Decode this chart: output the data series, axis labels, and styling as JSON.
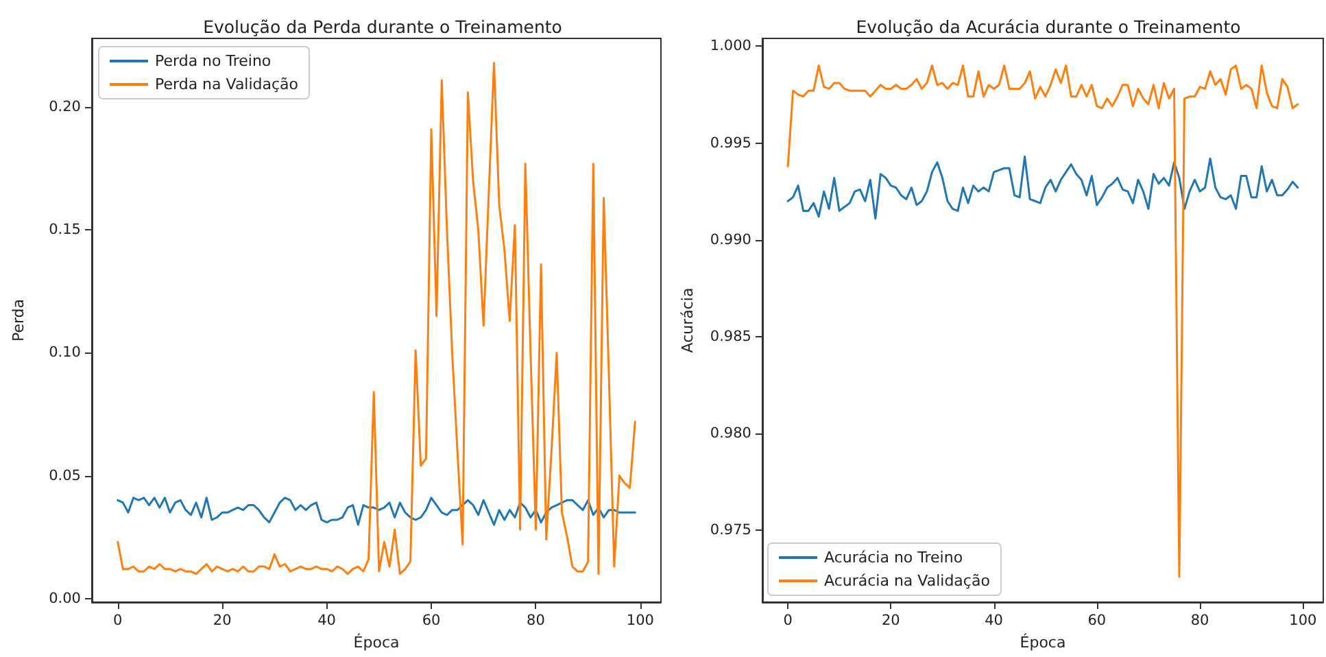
{
  "chart_data": [
    {
      "type": "line",
      "title": "Evolução da Perda durante o Treinamento",
      "xlabel": "Época",
      "ylabel": "Perda",
      "legend": "top left",
      "x": [
        0,
        1,
        2,
        3,
        4,
        5,
        6,
        7,
        8,
        9,
        10,
        11,
        12,
        13,
        14,
        15,
        16,
        17,
        18,
        19,
        20,
        21,
        22,
        23,
        24,
        25,
        26,
        27,
        28,
        29,
        30,
        31,
        32,
        33,
        34,
        35,
        36,
        37,
        38,
        39,
        40,
        41,
        42,
        43,
        44,
        45,
        46,
        47,
        48,
        49,
        50,
        51,
        52,
        53,
        54,
        55,
        56,
        57,
        58,
        59,
        60,
        61,
        62,
        63,
        64,
        65,
        66,
        67,
        68,
        69,
        70,
        71,
        72,
        73,
        74,
        75,
        76,
        77,
        78,
        79,
        80,
        81,
        82,
        83,
        84,
        85,
        86,
        87,
        88,
        89,
        90,
        91,
        92,
        93,
        94,
        95,
        96,
        97,
        98,
        99
      ],
      "xlim": [
        -4.95,
        103.95
      ],
      "xticks": [
        0,
        20,
        40,
        60,
        80,
        100
      ],
      "ylim": [
        -0.0015,
        0.228
      ],
      "yticks": [
        {
          "value": 0,
          "label": "0.00"
        },
        {
          "value": 0.05,
          "label": "0.05"
        },
        {
          "value": 0.1,
          "label": "0.10"
        },
        {
          "value": 0.15,
          "label": "0.15"
        },
        {
          "value": 0.2,
          "label": "0.20"
        }
      ],
      "series": [
        {
          "name": "Perda no Treino",
          "color": "#1f77b4",
          "values": [
            0.04,
            0.039,
            0.035,
            0.041,
            0.04,
            0.041,
            0.038,
            0.041,
            0.037,
            0.041,
            0.035,
            0.039,
            0.04,
            0.036,
            0.034,
            0.039,
            0.033,
            0.041,
            0.032,
            0.033,
            0.035,
            0.035,
            0.036,
            0.037,
            0.036,
            0.038,
            0.038,
            0.036,
            0.033,
            0.031,
            0.035,
            0.039,
            0.041,
            0.04,
            0.036,
            0.038,
            0.036,
            0.038,
            0.039,
            0.032,
            0.031,
            0.032,
            0.032,
            0.033,
            0.037,
            0.038,
            0.03,
            0.038,
            0.037,
            0.037,
            0.036,
            0.037,
            0.039,
            0.033,
            0.039,
            0.035,
            0.033,
            0.032,
            0.033,
            0.036,
            0.041,
            0.038,
            0.035,
            0.034,
            0.036,
            0.036,
            0.038,
            0.04,
            0.038,
            0.034,
            0.04,
            0.035,
            0.03,
            0.036,
            0.032,
            0.036,
            0.033,
            0.039,
            0.037,
            0.033,
            0.036,
            0.031,
            0.035,
            0.037,
            0.038,
            0.039,
            0.04,
            0.04,
            0.038,
            0.036,
            0.04,
            0.034,
            0.037,
            0.033,
            0.036,
            0.036,
            0.035,
            0.035,
            0.035,
            0.035
          ]
        },
        {
          "name": "Perda na Validação",
          "color": "#ff7f0e",
          "values": [
            0.023,
            0.012,
            0.012,
            0.013,
            0.011,
            0.011,
            0.013,
            0.012,
            0.014,
            0.012,
            0.012,
            0.011,
            0.012,
            0.011,
            0.011,
            0.01,
            0.012,
            0.014,
            0.011,
            0.013,
            0.012,
            0.011,
            0.012,
            0.011,
            0.013,
            0.011,
            0.011,
            0.013,
            0.013,
            0.012,
            0.018,
            0.013,
            0.014,
            0.011,
            0.012,
            0.013,
            0.012,
            0.012,
            0.013,
            0.012,
            0.012,
            0.011,
            0.013,
            0.012,
            0.01,
            0.012,
            0.013,
            0.011,
            0.016,
            0.084,
            0.011,
            0.023,
            0.013,
            0.028,
            0.01,
            0.012,
            0.015,
            0.101,
            0.054,
            0.057,
            0.191,
            0.115,
            0.211,
            0.15,
            0.1,
            0.06,
            0.022,
            0.206,
            0.17,
            0.15,
            0.111,
            0.165,
            0.218,
            0.16,
            0.142,
            0.113,
            0.152,
            0.028,
            0.177,
            0.1,
            0.028,
            0.136,
            0.024,
            0.06,
            0.1,
            0.035,
            0.025,
            0.013,
            0.011,
            0.011,
            0.015,
            0.177,
            0.01,
            0.163,
            0.09,
            0.013,
            0.05,
            0.047,
            0.045,
            0.072
          ]
        }
      ]
    },
    {
      "type": "line",
      "title": "Evolução da Acurácia durante o Treinamento",
      "xlabel": "Época",
      "ylabel": "Acurácia",
      "legend": "bottom left",
      "x": [
        0,
        1,
        2,
        3,
        4,
        5,
        6,
        7,
        8,
        9,
        10,
        11,
        12,
        13,
        14,
        15,
        16,
        17,
        18,
        19,
        20,
        21,
        22,
        23,
        24,
        25,
        26,
        27,
        28,
        29,
        30,
        31,
        32,
        33,
        34,
        35,
        36,
        37,
        38,
        39,
        40,
        41,
        42,
        43,
        44,
        45,
        46,
        47,
        48,
        49,
        50,
        51,
        52,
        53,
        54,
        55,
        56,
        57,
        58,
        59,
        60,
        61,
        62,
        63,
        64,
        65,
        66,
        67,
        68,
        69,
        70,
        71,
        72,
        73,
        74,
        75,
        76,
        77,
        78,
        79,
        80,
        81,
        82,
        83,
        84,
        85,
        86,
        87,
        88,
        89,
        90,
        91,
        92,
        93,
        94,
        95,
        96,
        97,
        98,
        99
      ],
      "xlim": [
        -4.95,
        103.95
      ],
      "xticks": [
        0,
        20,
        40,
        60,
        80,
        100
      ],
      "ylim": [
        0.9713,
        1.0004
      ],
      "yticks": [
        0.975,
        {
          "value": 0.98,
          "label": "0.980"
        },
        0.985,
        {
          "value": 0.99,
          "label": "0.990"
        },
        0.995,
        {
          "value": 1,
          "label": "1.000"
        }
      ],
      "series": [
        {
          "name": "Acurácia no Treino",
          "color": "#1f77b4",
          "values": [
            0.992,
            0.9922,
            0.9928,
            0.9915,
            0.9915,
            0.9919,
            0.9912,
            0.9925,
            0.9916,
            0.9932,
            0.9915,
            0.9917,
            0.9919,
            0.9925,
            0.9926,
            0.992,
            0.9931,
            0.9911,
            0.9934,
            0.9932,
            0.9928,
            0.9927,
            0.9923,
            0.9921,
            0.9927,
            0.9918,
            0.992,
            0.9925,
            0.9935,
            0.994,
            0.9932,
            0.992,
            0.9916,
            0.9915,
            0.9927,
            0.9919,
            0.9928,
            0.9925,
            0.9927,
            0.9925,
            0.9935,
            0.9936,
            0.9937,
            0.9937,
            0.9923,
            0.9922,
            0.9943,
            0.9921,
            0.992,
            0.9919,
            0.9927,
            0.9931,
            0.9925,
            0.9931,
            0.9935,
            0.9939,
            0.9934,
            0.9931,
            0.9923,
            0.9933,
            0.9918,
            0.9922,
            0.9927,
            0.9929,
            0.9932,
            0.9926,
            0.9925,
            0.9919,
            0.9931,
            0.9925,
            0.9916,
            0.9934,
            0.9929,
            0.9932,
            0.9928,
            0.994,
            0.9932,
            0.9916,
            0.9925,
            0.9931,
            0.9925,
            0.9927,
            0.9942,
            0.9927,
            0.9922,
            0.9921,
            0.9923,
            0.9916,
            0.9933,
            0.9933,
            0.9922,
            0.9922,
            0.9938,
            0.9925,
            0.9931,
            0.9923,
            0.9923,
            0.9926,
            0.993,
            0.9927
          ]
        },
        {
          "name": "Acurácia na Validação",
          "color": "#ff7f0e",
          "values": [
            0.9938,
            0.9977,
            0.9975,
            0.9974,
            0.9977,
            0.9977,
            0.999,
            0.9979,
            0.9978,
            0.9981,
            0.9981,
            0.9978,
            0.9977,
            0.9977,
            0.9977,
            0.9977,
            0.9974,
            0.9977,
            0.998,
            0.9978,
            0.9978,
            0.998,
            0.9978,
            0.9978,
            0.998,
            0.9983,
            0.9978,
            0.9981,
            0.999,
            0.998,
            0.9981,
            0.9978,
            0.9981,
            0.998,
            0.999,
            0.9974,
            0.9974,
            0.9987,
            0.9974,
            0.998,
            0.9978,
            0.998,
            0.999,
            0.9978,
            0.9978,
            0.9978,
            0.9981,
            0.9987,
            0.9973,
            0.9979,
            0.9974,
            0.998,
            0.9988,
            0.9981,
            0.999,
            0.9974,
            0.9974,
            0.998,
            0.9974,
            0.998,
            0.9969,
            0.9968,
            0.9973,
            0.9969,
            0.9974,
            0.998,
            0.998,
            0.9969,
            0.9978,
            0.9973,
            0.997,
            0.998,
            0.9968,
            0.9981,
            0.9973,
            0.9978,
            0.9726,
            0.9973,
            0.9974,
            0.9974,
            0.9979,
            0.9978,
            0.9987,
            0.998,
            0.9983,
            0.9975,
            0.9988,
            0.999,
            0.9978,
            0.998,
            0.9978,
            0.9968,
            0.999,
            0.9976,
            0.9969,
            0.9968,
            0.9983,
            0.9979,
            0.9968,
            0.997
          ]
        }
      ]
    }
  ]
}
